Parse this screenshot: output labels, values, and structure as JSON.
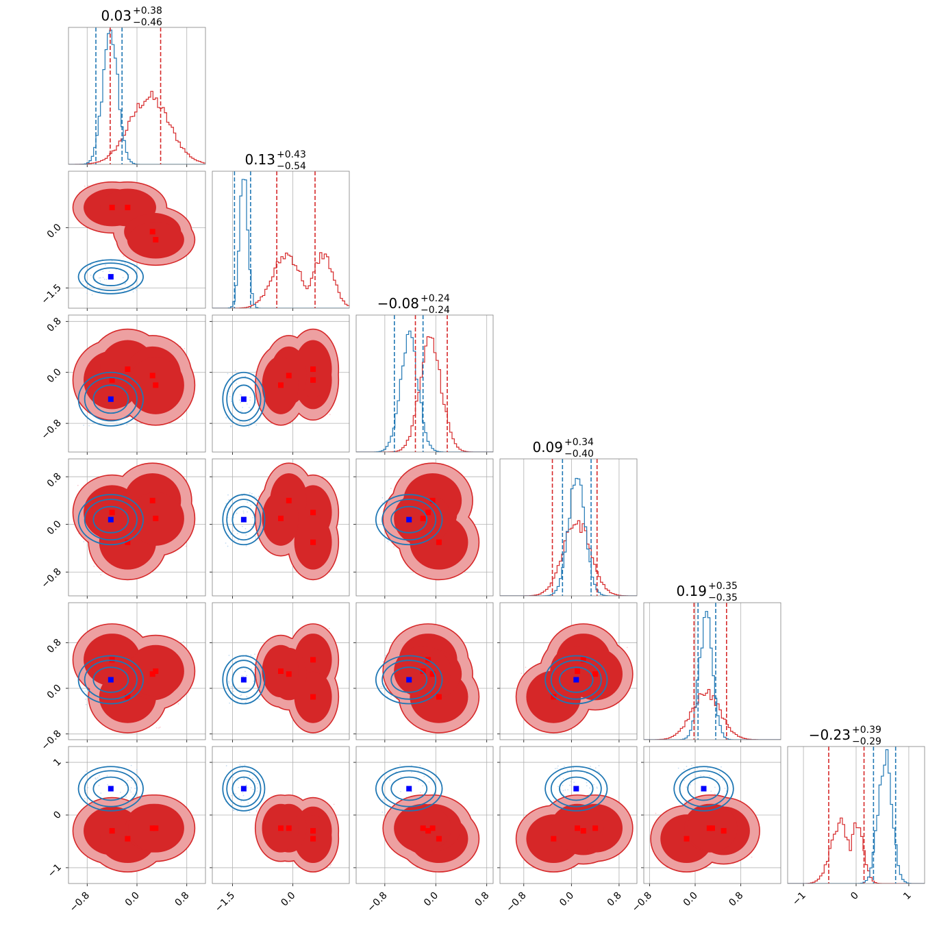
{
  "chart_data": {
    "type": "corner",
    "n_params": 6,
    "titles": [
      {
        "value": "0.03",
        "plus": "+0.38",
        "minus": "−0.46"
      },
      {
        "value": "0.13",
        "plus": "+0.43",
        "minus": "−0.54"
      },
      {
        "value": "−0.08",
        "plus": "+0.24",
        "minus": "−0.24"
      },
      {
        "value": "0.09",
        "plus": "+0.34",
        "minus": "−0.40"
      },
      {
        "value": "0.19",
        "plus": "+0.35",
        "minus": "−0.35"
      },
      {
        "value": "−0.23",
        "plus": "+0.39",
        "minus": "−0.29"
      }
    ],
    "x_tick_labels": [
      [
        "−0.8",
        "0.0",
        "0.8"
      ],
      [
        "−1.5",
        "0.0"
      ],
      [
        "−0.8",
        "0.0",
        "0.8"
      ],
      [
        "−0.8",
        "0.0",
        "0.8"
      ],
      [
        "−0.8",
        "0.0",
        "0.8"
      ],
      [
        "−1",
        "0",
        "1"
      ]
    ],
    "y_tick_labels": [
      [],
      [
        "0.0",
        "−1.5"
      ],
      [
        "0.8",
        "0.0",
        "−0.8"
      ],
      [
        "0.8",
        "0.0",
        "−0.8"
      ],
      [
        "0.8",
        "0.0",
        "−0.8"
      ],
      [
        "1",
        "0",
        "−1"
      ]
    ],
    "ranges": [
      [
        -1.1,
        1.1
      ],
      [
        -2.0,
        1.4
      ],
      [
        -1.25,
        0.9
      ],
      [
        -1.2,
        1.1
      ],
      [
        -0.9,
        1.5
      ],
      [
        -1.3,
        1.3
      ]
    ],
    "quantile_lines": {
      "red": [
        [
          -0.43,
          0.38
        ],
        [
          -0.4,
          0.55
        ],
        [
          -0.32,
          0.18
        ],
        [
          -0.32,
          0.43
        ],
        [
          -0.02,
          0.55
        ],
        [
          -0.52,
          0.15
        ]
      ],
      "blue": [
        [
          -0.66,
          -0.24
        ],
        [
          -1.45,
          -1.05
        ],
        [
          -0.65,
          -0.2
        ],
        [
          -0.15,
          0.33
        ],
        [
          0.05,
          0.36
        ],
        [
          0.33,
          0.75
        ]
      ]
    },
    "histograms": [
      {
        "red": {
          "mu": [
            [
              0.2,
              0.32
            ]
          ],
          "peak": 0.5
        },
        "blue": {
          "mu": [
            [
              -0.43,
              0.12
            ]
          ],
          "peak": 1.0
        }
      },
      {
        "red": {
          "mu": [
            [
              -0.15,
              0.35
            ],
            [
              0.75,
              0.25
            ]
          ],
          "peak": 0.4
        },
        "blue": {
          "mu": [
            [
              -1.22,
              0.1
            ]
          ],
          "peak": 1.0
        }
      },
      {
        "red": {
          "mu": [
            [
              -0.08,
              0.17
            ]
          ],
          "peak": 0.82
        },
        "blue": {
          "mu": [
            [
              -0.42,
              0.14
            ]
          ],
          "peak": 0.85
        }
      },
      {
        "red": {
          "mu": [
            [
              0.09,
              0.23
            ]
          ],
          "peak": 0.55
        },
        "blue": {
          "mu": [
            [
              0.09,
              0.14
            ]
          ],
          "peak": 0.9
        }
      },
      {
        "red": {
          "mu": [
            [
              0.19,
              0.25
            ]
          ],
          "peak": 0.35
        },
        "blue": {
          "mu": [
            [
              0.19,
              0.12
            ]
          ],
          "peak": 0.9
        }
      },
      {
        "red": {
          "mu": [
            [
              -0.3,
              0.18
            ],
            [
              0.02,
              0.12
            ]
          ],
          "peak": 0.45
        },
        "blue": {
          "mu": [
            [
              0.55,
              0.13
            ]
          ],
          "peak": 0.95
        }
      }
    ],
    "red_modes": [
      [
        -0.4,
        0.5,
        -0.12,
        0.2,
        0.5,
        -0.3
      ],
      [
        -0.15,
        0.5,
        0.05,
        -0.3,
        -0.15,
        -0.45
      ],
      [
        0.25,
        -0.1,
        -0.05,
        0.4,
        0.25,
        -0.25
      ],
      [
        0.3,
        -0.3,
        -0.2,
        0.1,
        0.3,
        -0.25
      ]
    ],
    "blue_truth": [
      -0.42,
      -1.22,
      -0.42,
      0.08,
      0.15,
      0.5
    ],
    "colors": {
      "red": "#d62728",
      "blue": "#1f77b4",
      "red_fill_light": "#eda0a1",
      "truth_red": "#ff0000",
      "truth_blue": "#0000ff"
    }
  }
}
